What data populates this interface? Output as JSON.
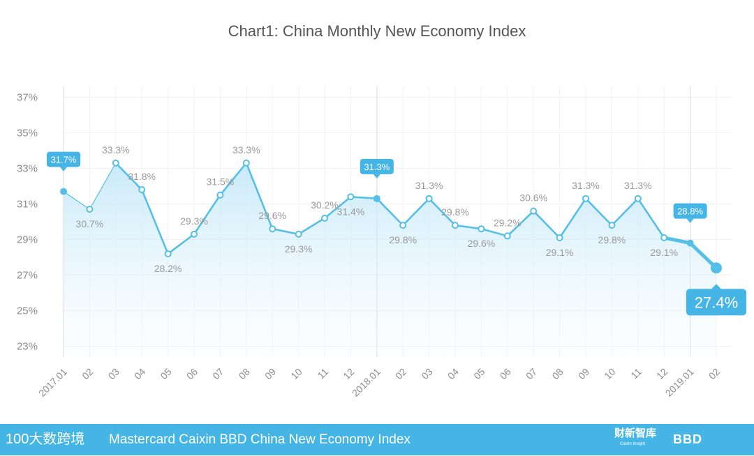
{
  "chart_data": {
    "type": "line",
    "title": "Chart1: China Monthly New Economy Index",
    "categories": [
      "2017.01",
      "02",
      "03",
      "04",
      "05",
      "06",
      "07",
      "08",
      "09",
      "10",
      "11",
      "12",
      "2018.01",
      "02",
      "03",
      "04",
      "05",
      "06",
      "07",
      "08",
      "09",
      "10",
      "11",
      "12",
      "2019.01",
      "02"
    ],
    "values": [
      31.7,
      30.7,
      33.3,
      31.8,
      28.2,
      29.3,
      31.5,
      33.3,
      29.6,
      29.3,
      30.2,
      31.4,
      31.3,
      29.8,
      31.3,
      29.8,
      29.6,
      29.2,
      30.6,
      29.1,
      31.3,
      29.8,
      31.3,
      29.1,
      28.8,
      27.4
    ],
    "data_labels": [
      "31.7%",
      "30.7%",
      "33.3%",
      "31.8%",
      "28.2%",
      "29.3%",
      "31.5%",
      "33.3%",
      "29.6%",
      "29.3%",
      "30.2%",
      "31.4%",
      "31.3%",
      "29.8%",
      "31.3%",
      "29.8%",
      "29.6%",
      "29.2%",
      "30.6%",
      "29.1%",
      "31.3%",
      "29.8%",
      "31.3%",
      "29.1%",
      "28.8%",
      "27.4%"
    ],
    "highlighted": [
      0,
      12,
      24,
      25
    ],
    "y_ticks": [
      "23%",
      "25%",
      "27%",
      "29%",
      "31%",
      "33%",
      "35%",
      "37%"
    ],
    "y_tick_values": [
      23,
      25,
      27,
      29,
      31,
      33,
      35,
      37
    ],
    "ylim": [
      22.4,
      37.6
    ],
    "year_markers": [
      0,
      12,
      24
    ],
    "grid": true,
    "line_color": "#55bfe8",
    "callout_color": "#45b5e6"
  },
  "footer": {
    "title": "Mastercard Caixin BBD China New Economy Index",
    "left_logo": "100大数跨境",
    "logo_caixin": "财新智库",
    "logo_caixin_sub": "Caixin Insight",
    "logo_bbd": "BBD"
  }
}
